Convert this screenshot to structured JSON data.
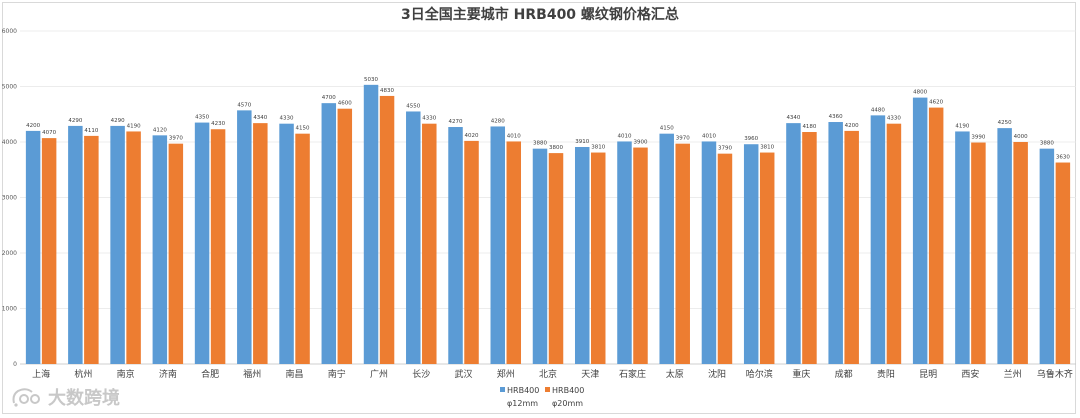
{
  "chart_data": {
    "type": "bar",
    "title": "3日全国主要城市 HRB400 螺纹钢价格汇总",
    "categories": [
      "上海",
      "杭州",
      "南京",
      "济南",
      "合肥",
      "福州",
      "南昌",
      "南宁",
      "广州",
      "长沙",
      "武汉",
      "郑州",
      "北京",
      "天津",
      "石家庄",
      "太原",
      "沈阳",
      "哈尔滨",
      "重庆",
      "成都",
      "贵阳",
      "昆明",
      "西安",
      "兰州",
      "乌鲁木齐"
    ],
    "series": [
      {
        "name": "HRB400 φ12mm",
        "legend_line1": "HRB400",
        "legend_line2": "φ12mm",
        "color": "#5b9bd5",
        "values": [
          4200,
          4290,
          4290,
          4120,
          4350,
          4570,
          4330,
          4700,
          5030,
          4550,
          4270,
          4280,
          3880,
          3910,
          4010,
          4150,
          4010,
          3960,
          4340,
          4360,
          4480,
          4800,
          4190,
          4250,
          3880
        ]
      },
      {
        "name": "HRB400 φ20mm",
        "legend_line1": "HRB400",
        "legend_line2": "φ20mm",
        "color": "#ed7d31",
        "values": [
          4070,
          4110,
          4190,
          3970,
          4230,
          4340,
          4150,
          4600,
          4830,
          4330,
          4020,
          4010,
          3800,
          3810,
          3900,
          3970,
          3790,
          3810,
          4180,
          4200,
          4330,
          4620,
          3990,
          4000,
          3630
        ]
      }
    ],
    "ylim": [
      0,
      6000
    ],
    "yticks": [
      0,
      1000,
      2000,
      3000,
      4000,
      5000,
      6000
    ],
    "grid": true,
    "data_labels": true,
    "legend_position": "bottom"
  },
  "watermark": {
    "text": "大数跨境",
    "logo_icon": "bubble-logo-icon"
  }
}
